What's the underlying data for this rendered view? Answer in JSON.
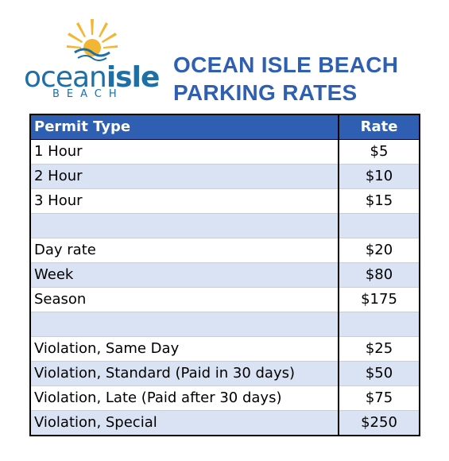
{
  "logo": {
    "word_ocean": "ocean",
    "word_isle": "isle",
    "subtitle": "BEACH",
    "sun_color": "#f2b632",
    "text_color": "#1d6fa8"
  },
  "title": {
    "line1": "OCEAN ISLE BEACH",
    "line2": "PARKING RATES"
  },
  "table": {
    "headers": {
      "type": "Permit Type",
      "rate": "Rate"
    },
    "header_color": "#2f5fb3",
    "stripe_color": "#dae3f3",
    "rows": [
      {
        "type": "1 Hour",
        "rate": "$5"
      },
      {
        "type": "2 Hour",
        "rate": "$10"
      },
      {
        "type": "3 Hour",
        "rate": "$15"
      },
      {
        "type": "",
        "rate": ""
      },
      {
        "type": "Day rate",
        "rate": "$20"
      },
      {
        "type": "Week",
        "rate": "$80"
      },
      {
        "type": "Season",
        "rate": "$175"
      },
      {
        "type": "",
        "rate": ""
      },
      {
        "type": "Violation, Same Day",
        "rate": "$25"
      },
      {
        "type": "Violation, Standard (Paid in 30 days)",
        "rate": "$50"
      },
      {
        "type": "Violation, Late (Paid after 30 days)",
        "rate": "$75"
      },
      {
        "type": "Violation, Special",
        "rate": "$250"
      }
    ]
  }
}
